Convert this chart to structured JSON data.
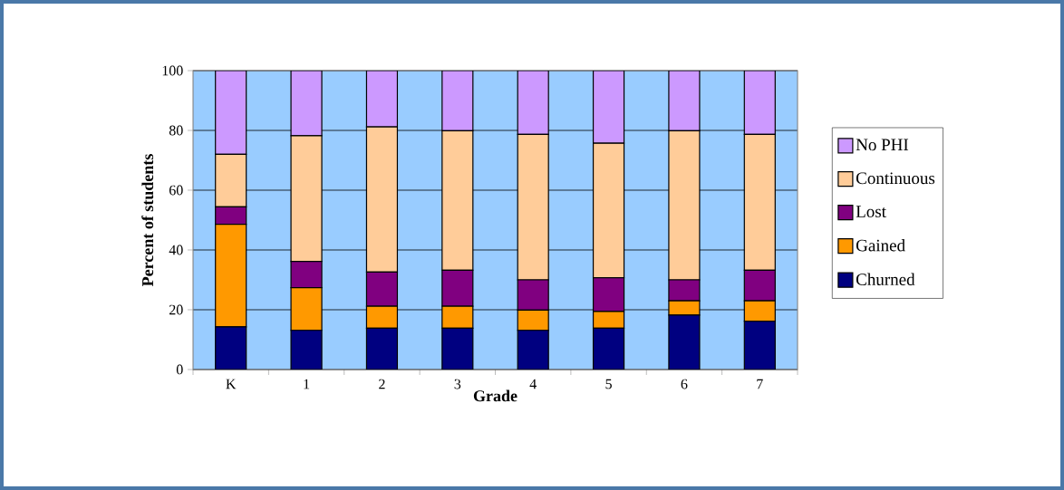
{
  "chart_data": {
    "type": "bar",
    "stacked": true,
    "xlabel": "Grade",
    "ylabel": "Percent of students",
    "categories": [
      "K",
      "1",
      "2",
      "3",
      "4",
      "5",
      "6",
      "7"
    ],
    "series": [
      {
        "name": "Churned",
        "color": "#000080",
        "values": [
          14.3,
          13.1,
          13.8,
          13.8,
          13.1,
          13.8,
          18.2,
          16.2
        ]
      },
      {
        "name": "Gained",
        "color": "#ff9900",
        "values": [
          34.3,
          14.3,
          7.4,
          7.4,
          6.8,
          5.6,
          4.8,
          6.8
        ]
      },
      {
        "name": "Lost",
        "color": "#800080",
        "values": [
          5.8,
          8.8,
          11.4,
          12.0,
          10.1,
          11.3,
          7.0,
          10.2
        ]
      },
      {
        "name": "Continuous",
        "color": "#ffcc99",
        "values": [
          17.6,
          42.0,
          48.6,
          46.7,
          48.7,
          45.0,
          49.9,
          45.5
        ]
      },
      {
        "name": "No PHI",
        "color": "#cc99ff",
        "values": [
          28.0,
          21.8,
          18.8,
          20.1,
          21.3,
          24.3,
          20.1,
          21.3
        ]
      }
    ],
    "ylim": [
      0,
      100
    ],
    "yticks": [
      0,
      20,
      40,
      60,
      80,
      100
    ],
    "grid": "y",
    "legend": "right"
  }
}
